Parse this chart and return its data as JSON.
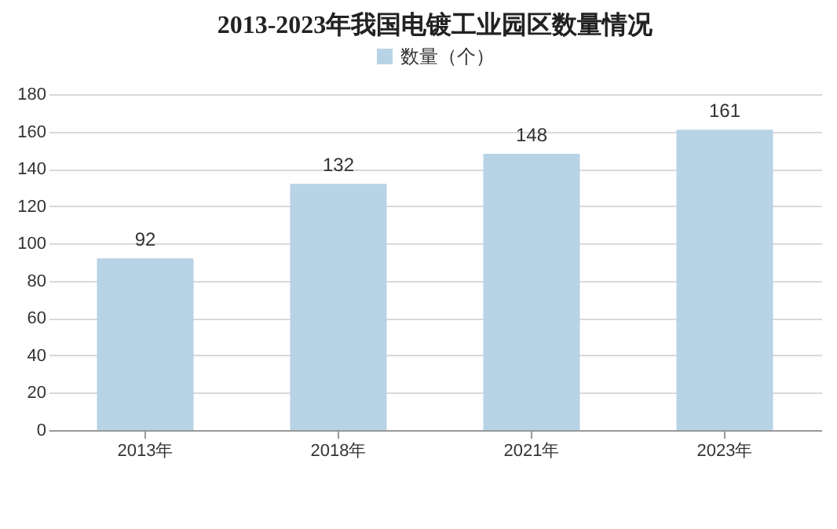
{
  "chart_data": {
    "type": "bar",
    "title": "2013-2023年我国电镀工业园区数量情况",
    "categories": [
      "2013年",
      "2018年",
      "2021年",
      "2023年"
    ],
    "series": [
      {
        "name": "数量（个）",
        "color": "#b7d3e5",
        "values": [
          92,
          132,
          148,
          161
        ]
      }
    ],
    "ylim": [
      0,
      180
    ],
    "yticks": [
      0,
      20,
      40,
      60,
      80,
      100,
      120,
      140,
      160,
      180
    ],
    "grid": "y",
    "legend": "top",
    "data_labels": true
  }
}
